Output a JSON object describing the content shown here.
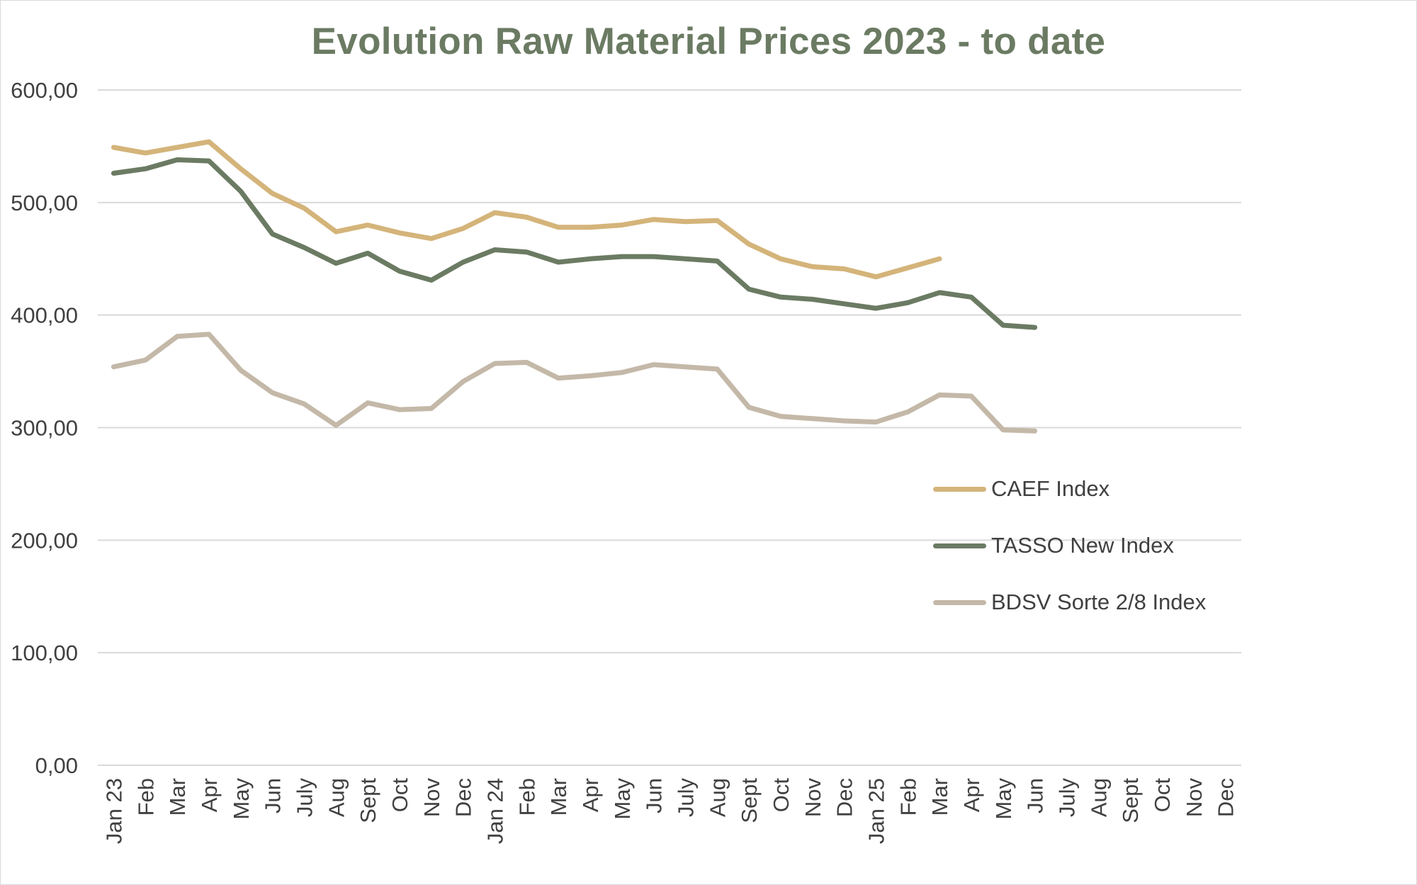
{
  "chart_data": {
    "type": "line",
    "title": "Evolution Raw Material Prices 2023 - to date",
    "xlabel": "",
    "ylabel": "",
    "ylim": [
      0,
      600
    ],
    "yticks": [
      "0,00",
      "100,00",
      "200,00",
      "300,00",
      "400,00",
      "500,00",
      "600,00"
    ],
    "ytick_values": [
      0,
      100,
      200,
      300,
      400,
      500,
      600
    ],
    "grid": true,
    "legend_position": "right",
    "categories": [
      "Jan 23",
      "Feb",
      "Mar",
      "Apr",
      "May",
      "Jun",
      "July",
      "Aug",
      "Sept",
      "Oct",
      "Nov",
      "Dec",
      "Jan 24",
      "Feb",
      "Mar",
      "Apr",
      "May",
      "Jun",
      "July",
      "Aug",
      "Sept",
      "Oct",
      "Nov",
      "Dec",
      "Jan 25",
      "Feb",
      "Mar",
      "Apr",
      "May",
      "Jun",
      "July",
      "Aug",
      "Sept",
      "Oct",
      "Nov",
      "Dec"
    ],
    "series": [
      {
        "name": "CAEF Index",
        "color": "#d4b47a",
        "values": [
          549,
          544,
          549,
          554,
          530,
          508,
          495,
          474,
          480,
          473,
          468,
          477,
          491,
          487,
          478,
          478,
          480,
          485,
          483,
          484,
          463,
          450,
          443,
          441,
          434,
          442,
          450,
          null,
          null,
          null,
          null,
          null,
          null,
          null,
          null,
          null
        ]
      },
      {
        "name": "TASSO New Index",
        "color": "#6b7b63",
        "values": [
          526,
          530,
          538,
          537,
          510,
          472,
          460,
          446,
          455,
          439,
          431,
          447,
          458,
          456,
          447,
          450,
          452,
          452,
          450,
          448,
          423,
          416,
          414,
          410,
          406,
          411,
          420,
          416,
          391,
          389,
          null,
          null,
          null,
          null,
          null,
          null
        ]
      },
      {
        "name": "BDSV Sorte 2/8 Index",
        "color": "#c4b8a8",
        "values": [
          354,
          360,
          381,
          383,
          351,
          331,
          321,
          302,
          322,
          316,
          317,
          341,
          357,
          358,
          344,
          346,
          349,
          356,
          354,
          352,
          318,
          310,
          308,
          306,
          305,
          314,
          329,
          328,
          298,
          297,
          null,
          null,
          null,
          null,
          null,
          null
        ]
      }
    ]
  }
}
